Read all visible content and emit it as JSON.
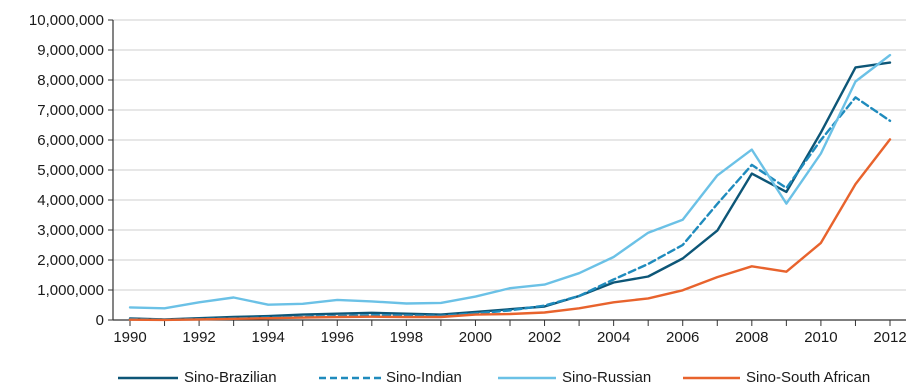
{
  "chart_data": {
    "type": "line",
    "title": "",
    "xlabel": "",
    "ylabel": "",
    "x": [
      1990,
      1991,
      1992,
      1993,
      1994,
      1995,
      1996,
      1997,
      1998,
      1999,
      2000,
      2001,
      2002,
      2003,
      2004,
      2005,
      2006,
      2007,
      2008,
      2009,
      2010,
      2011,
      2012
    ],
    "xticks": [
      "1990",
      "1992",
      "1994",
      "1996",
      "1998",
      "2000",
      "2002",
      "2004",
      "2006",
      "2008",
      "2010",
      "2012"
    ],
    "ylim": [
      0,
      10000000
    ],
    "yticks": [
      "0",
      "1,000,000",
      "2,000,000",
      "3,000,000",
      "4,000,000",
      "5,000,000",
      "6,000,000",
      "7,000,000",
      "8,000,000",
      "9,000,000",
      "10,000,000"
    ],
    "grid": "horizontal",
    "legend_position": "bottom",
    "series": [
      {
        "name": "Sino-Brazilian",
        "color": "#0d5677",
        "dash": "solid",
        "values": [
          50000,
          20000,
          60000,
          100000,
          130000,
          180000,
          210000,
          240000,
          210000,
          180000,
          270000,
          360000,
          450000,
          800000,
          1250000,
          1450000,
          2050000,
          2980000,
          4880000,
          4270000,
          6250000,
          8420000,
          8580000
        ]
      },
      {
        "name": "Sino-Indian",
        "color": "#1f8bbd",
        "dash": "dashed",
        "values": [
          30000,
          10000,
          30000,
          50000,
          80000,
          100000,
          130000,
          160000,
          150000,
          140000,
          220000,
          320000,
          480000,
          800000,
          1350000,
          1870000,
          2500000,
          3870000,
          5170000,
          4400000,
          6000000,
          7420000,
          6640000
        ]
      },
      {
        "name": "Sino-Russian",
        "color": "#6bc1e6",
        "dash": "solid",
        "values": [
          420000,
          390000,
          590000,
          750000,
          510000,
          540000,
          670000,
          620000,
          550000,
          570000,
          780000,
          1060000,
          1180000,
          1560000,
          2100000,
          2910000,
          3340000,
          4820000,
          5680000,
          3880000,
          5550000,
          7950000,
          8830000
        ]
      },
      {
        "name": "Sino-South African",
        "color": "#e8632d",
        "dash": "solid",
        "values": [
          10000,
          5000,
          20000,
          40000,
          60000,
          80000,
          100000,
          110000,
          100000,
          100000,
          180000,
          200000,
          250000,
          390000,
          590000,
          720000,
          990000,
          1430000,
          1790000,
          1610000,
          2570000,
          4530000,
          6020000
        ]
      }
    ]
  }
}
